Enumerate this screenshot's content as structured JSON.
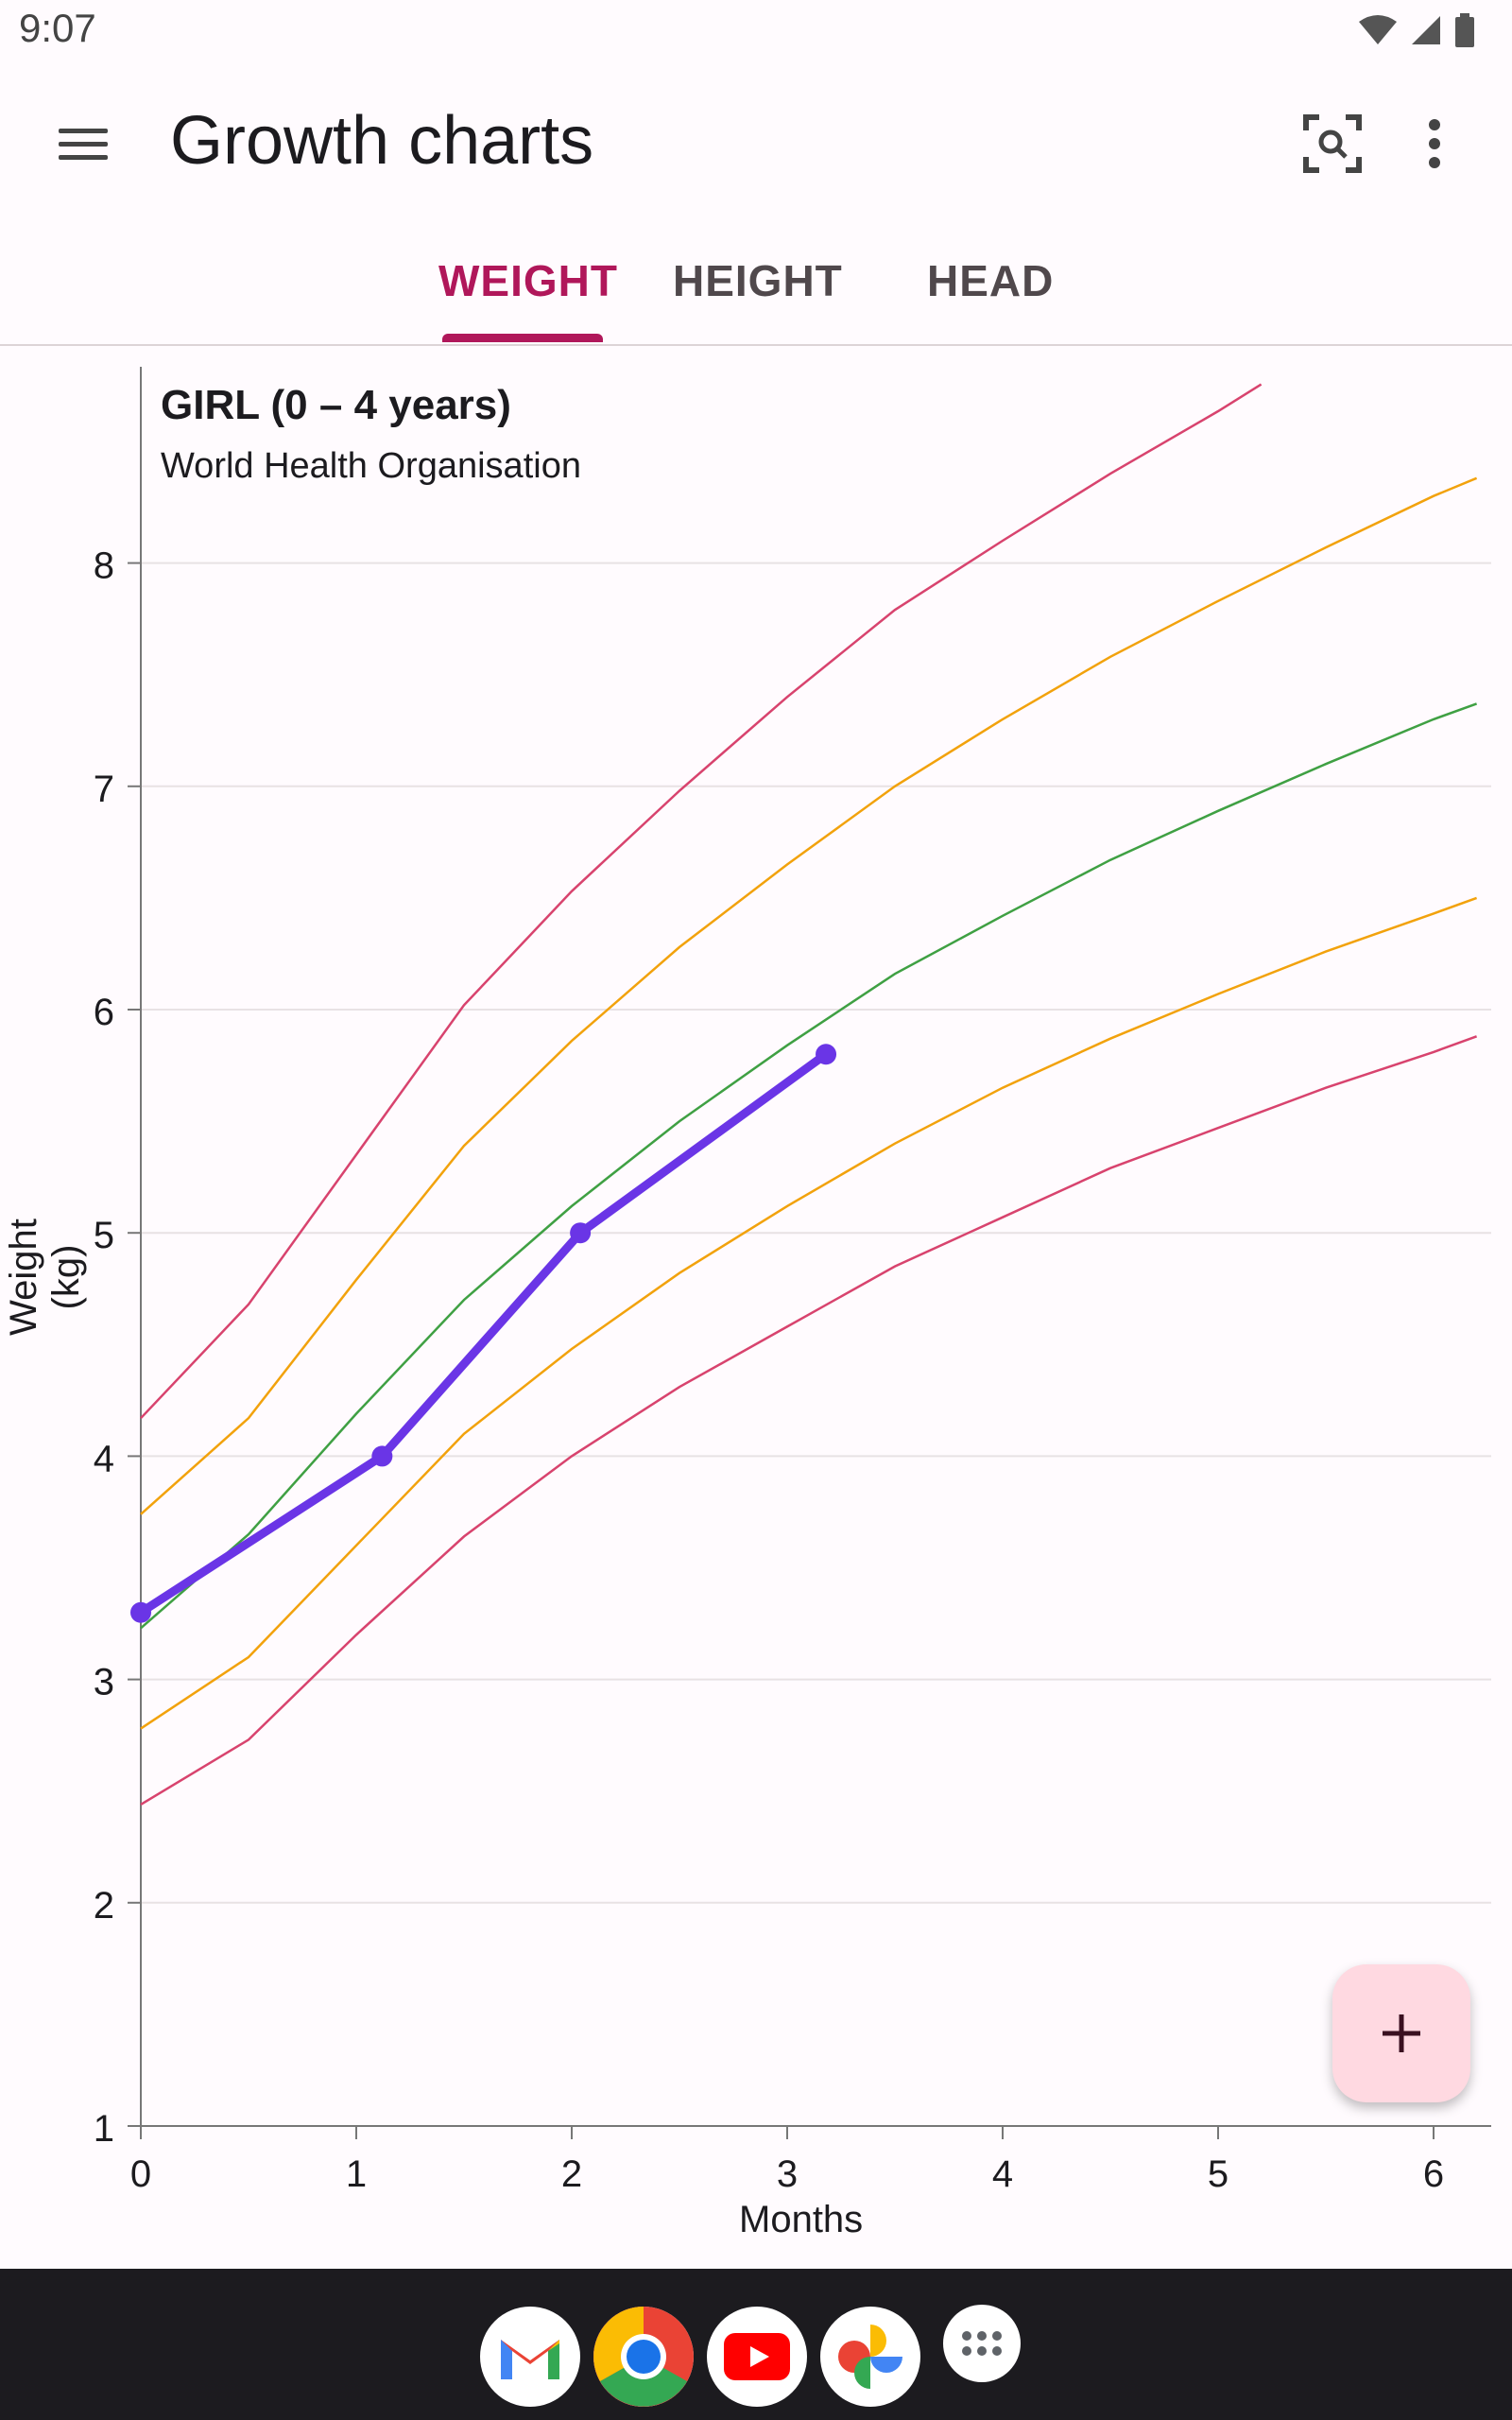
{
  "status": {
    "time": "9:07"
  },
  "app_bar": {
    "title": "Growth charts"
  },
  "tabs": [
    {
      "label": "WEIGHT",
      "active": true
    },
    {
      "label": "HEIGHT",
      "active": false
    },
    {
      "label": "HEAD",
      "active": false
    }
  ],
  "icons": {
    "menu": "menu-icon",
    "scan": "document-scan-icon",
    "more": "more-vert-icon",
    "add": "plus-icon"
  },
  "colors": {
    "accent": "#b0175a",
    "measurement": "#6a35e6",
    "percentile_outer": "#d8436e",
    "percentile_mid": "#f2a20c",
    "percentile_median": "#3fa043",
    "fab": "#ffd9e1"
  },
  "chart_data": {
    "type": "line",
    "title": "GIRL (0 – 4 years)",
    "subtitle": "World Health Organisation",
    "xlabel": "Months",
    "ylabel": "Weight (kg)",
    "xlim": [
      0,
      6.3
    ],
    "ylim": [
      1,
      8.9
    ],
    "xticks": [
      0,
      1,
      2,
      3,
      4,
      5,
      6
    ],
    "yticks": [
      1,
      2,
      3,
      4,
      5,
      6,
      7,
      8
    ],
    "grid": true,
    "percentile_curves": [
      {
        "color": "#d8436e",
        "points": [
          [
            0,
            4.17
          ],
          [
            0.5,
            4.68
          ],
          [
            1,
            5.35
          ],
          [
            1.5,
            6.02
          ],
          [
            2,
            6.53
          ],
          [
            2.5,
            6.98
          ],
          [
            3,
            7.4
          ],
          [
            3.5,
            7.79
          ],
          [
            4,
            8.1
          ],
          [
            4.5,
            8.4
          ],
          [
            5,
            8.68
          ],
          [
            5.2,
            8.8
          ]
        ]
      },
      {
        "color": "#f2a20c",
        "points": [
          [
            0,
            3.74
          ],
          [
            0.5,
            4.17
          ],
          [
            1,
            4.79
          ],
          [
            1.5,
            5.39
          ],
          [
            2,
            5.86
          ],
          [
            2.5,
            6.28
          ],
          [
            3,
            6.65
          ],
          [
            3.5,
            7.0
          ],
          [
            4,
            7.3
          ],
          [
            4.5,
            7.58
          ],
          [
            5,
            7.83
          ],
          [
            5.5,
            8.07
          ],
          [
            6,
            8.3
          ],
          [
            6.2,
            8.38
          ]
        ]
      },
      {
        "color": "#3fa043",
        "points": [
          [
            0,
            3.23
          ],
          [
            0.5,
            3.65
          ],
          [
            1,
            4.19
          ],
          [
            1.5,
            4.7
          ],
          [
            2,
            5.12
          ],
          [
            2.5,
            5.5
          ],
          [
            3,
            5.84
          ],
          [
            3.5,
            6.16
          ],
          [
            4,
            6.42
          ],
          [
            4.5,
            6.67
          ],
          [
            5,
            6.89
          ],
          [
            5.5,
            7.1
          ],
          [
            6,
            7.3
          ],
          [
            6.2,
            7.37
          ]
        ]
      },
      {
        "color": "#f2a20c",
        "points": [
          [
            0,
            2.78
          ],
          [
            0.5,
            3.1
          ],
          [
            1,
            3.6
          ],
          [
            1.5,
            4.1
          ],
          [
            2,
            4.48
          ],
          [
            2.5,
            4.82
          ],
          [
            3,
            5.12
          ],
          [
            3.5,
            5.4
          ],
          [
            4,
            5.65
          ],
          [
            4.5,
            5.87
          ],
          [
            5,
            6.07
          ],
          [
            5.5,
            6.26
          ],
          [
            6,
            6.43
          ],
          [
            6.2,
            6.5
          ]
        ]
      },
      {
        "color": "#d8436e",
        "points": [
          [
            0,
            2.44
          ],
          [
            0.5,
            2.73
          ],
          [
            1,
            3.2
          ],
          [
            1.5,
            3.64
          ],
          [
            2,
            4.0
          ],
          [
            2.5,
            4.31
          ],
          [
            3,
            4.58
          ],
          [
            3.5,
            4.85
          ],
          [
            4,
            5.07
          ],
          [
            4.5,
            5.29
          ],
          [
            5,
            5.47
          ],
          [
            5.5,
            5.65
          ],
          [
            6,
            5.81
          ],
          [
            6.2,
            5.88
          ]
        ]
      }
    ],
    "series": [
      {
        "x": [
          0,
          1.12,
          2.04,
          3.18
        ],
        "y": [
          3.3,
          4.0,
          5.0,
          5.8
        ]
      }
    ]
  }
}
